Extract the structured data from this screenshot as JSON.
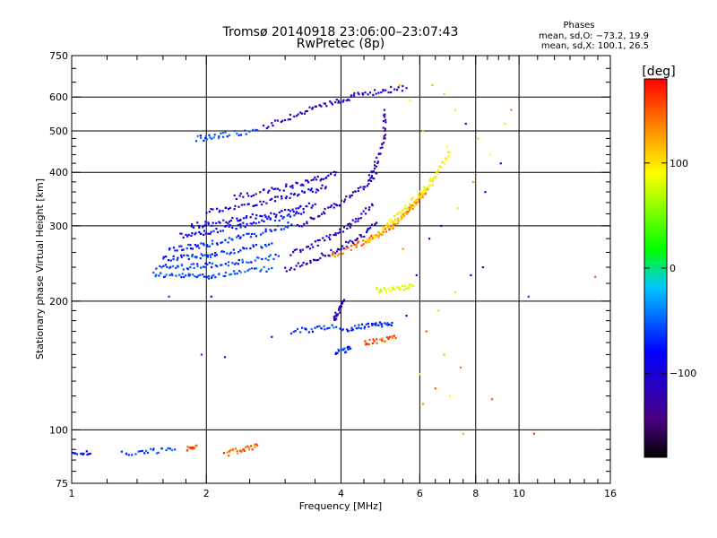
{
  "chart_data": {
    "type": "scatter",
    "title": "Tromsø 20140918 23:06:00–23:07:43",
    "subtitle": "RwPretec (8p)",
    "xlabel": "Frequency [MHz]",
    "ylabel": "Stationary phase Virtual Height [km]",
    "x_scale": "log",
    "y_scale": "log",
    "xlim": [
      1,
      16
    ],
    "ylim": [
      75,
      750
    ],
    "x_ticks": [
      1,
      2,
      4,
      6,
      8,
      10,
      16
    ],
    "x_tick_labels": [
      "1",
      "2",
      "4",
      "6",
      "8",
      "10",
      "16"
    ],
    "y_ticks": [
      75,
      100,
      200,
      300,
      400,
      500,
      600,
      750
    ],
    "y_tick_labels": [
      "75",
      "100",
      "200",
      "300",
      "400",
      "500",
      "600",
      "750"
    ],
    "x_grid": [
      2,
      4,
      6,
      8,
      10
    ],
    "y_grid": [
      100,
      200,
      300,
      400,
      500,
      600
    ],
    "grid": true,
    "phases_title": "Phases",
    "phase_stats": [
      "mean, sd,O: −73.2, 19.9",
      "mean, sd,X: 100.1, 26.5"
    ],
    "colorbar": {
      "label": "[deg]",
      "min": -180,
      "max": 180,
      "ticks": [
        100,
        0,
        -100
      ],
      "tick_labels": [
        "100",
        "0",
        "−100"
      ],
      "placement": "right"
    },
    "traces": [
      {
        "x": [
          1.52,
          1.6,
          1.7,
          1.8,
          1.9,
          2.0,
          2.1,
          2.25,
          2.4,
          2.6,
          2.8
        ],
        "y": [
          232,
          230,
          229,
          229,
          229,
          229,
          230,
          232,
          234,
          236,
          239
        ],
        "phase": -58
      },
      {
        "x": [
          1.55,
          1.65,
          1.75,
          1.85,
          1.95,
          2.05,
          2.2,
          2.35,
          2.5,
          2.7,
          2.9
        ],
        "y": [
          240,
          240,
          240,
          241,
          242,
          243,
          244,
          246,
          248,
          251,
          255
        ],
        "phase": -62
      },
      {
        "x": [
          1.6,
          1.7,
          1.8,
          1.9,
          2.0,
          2.1,
          2.25,
          2.4,
          2.6,
          2.8
        ],
        "y": [
          252,
          252,
          253,
          254,
          256,
          258,
          261,
          264,
          268,
          273
        ],
        "phase": -66
      },
      {
        "x": [
          1.65,
          1.75,
          1.85,
          1.95,
          2.05,
          2.2,
          2.35,
          2.5,
          2.7,
          2.9,
          3.1
        ],
        "y": [
          264,
          266,
          268,
          270,
          273,
          277,
          281,
          285,
          290,
          296,
          302
        ],
        "phase": -72
      },
      {
        "x": [
          1.75,
          1.85,
          1.95,
          2.05,
          2.2,
          2.35,
          2.5,
          2.7,
          2.9,
          3.1,
          3.3
        ],
        "y": [
          284,
          286,
          288,
          291,
          295,
          299,
          303,
          308,
          313,
          318,
          323
        ],
        "phase": -80
      },
      {
        "x": [
          1.85,
          1.95,
          2.05,
          2.2,
          2.35,
          2.5,
          2.7,
          2.9,
          3.1,
          3.3,
          3.5
        ],
        "y": [
          300,
          302,
          304,
          307,
          310,
          314,
          318,
          322,
          327,
          332,
          337
        ],
        "phase": -88
      },
      {
        "x": [
          2.0,
          2.15,
          2.3,
          2.5,
          2.7,
          2.9,
          3.1,
          3.3,
          3.5,
          3.7
        ],
        "y": [
          325,
          328,
          332,
          337,
          342,
          347,
          352,
          358,
          364,
          370
        ],
        "phase": -95
      },
      {
        "x": [
          2.3,
          2.5,
          2.7,
          2.9,
          3.1,
          3.3,
          3.5,
          3.7,
          3.9
        ],
        "y": [
          350,
          355,
          360,
          366,
          372,
          378,
          385,
          392,
          400
        ],
        "phase": -100
      },
      {
        "x": [
          3.0,
          3.2,
          3.4,
          3.6,
          3.8,
          4.0,
          4.2,
          4.4,
          4.6,
          4.8
        ],
        "y": [
          236,
          242,
          248,
          254,
          260,
          266,
          274,
          282,
          292,
          305
        ],
        "phase": -110
      },
      {
        "x": [
          3.1,
          3.3,
          3.5,
          3.7,
          3.9,
          4.1,
          4.3,
          4.5,
          4.7
        ],
        "y": [
          258,
          265,
          272,
          280,
          288,
          298,
          308,
          320,
          335
        ],
        "phase": -104
      },
      {
        "x": [
          3.2,
          3.4,
          3.6,
          3.8,
          4.0,
          4.2,
          4.4,
          4.6,
          4.8
        ],
        "y": [
          300,
          310,
          320,
          330,
          340,
          352,
          365,
          380,
          398
        ],
        "phase": -112
      },
      {
        "x": [
          4.6,
          4.7,
          4.8,
          4.9,
          5.0,
          5.0,
          5.0
        ],
        "y": [
          380,
          400,
          425,
          450,
          480,
          520,
          560
        ],
        "phase": -118
      },
      {
        "x": [
          2.7,
          2.9,
          3.1,
          3.3,
          3.5,
          3.7,
          3.9,
          4.1,
          4.3,
          4.6,
          4.9,
          5.2,
          5.6
        ],
        "y": [
          510,
          525,
          540,
          555,
          565,
          575,
          585,
          595,
          605,
          612,
          620,
          625,
          630
        ],
        "phase": -110
      },
      {
        "x": [
          1.9,
          2.0,
          2.1,
          2.2,
          2.4,
          2.6
        ],
        "y": [
          480,
          482,
          486,
          490,
          496,
          502
        ],
        "phase": -60
      },
      {
        "x": [
          3.8,
          4.0,
          4.2,
          4.4,
          4.6,
          4.8,
          5.0,
          5.2,
          5.4,
          5.6,
          5.8,
          6.0,
          6.2
        ],
        "y": [
          255,
          260,
          266,
          272,
          278,
          285,
          292,
          300,
          310,
          322,
          335,
          350,
          365
        ],
        "phase": 145
      },
      {
        "x": [
          4.5,
          4.7,
          4.9,
          5.1,
          5.3,
          5.5,
          5.7,
          5.9,
          6.1,
          6.3,
          6.5
        ],
        "y": [
          275,
          282,
          290,
          298,
          307,
          318,
          330,
          343,
          357,
          372,
          390
        ],
        "phase": 110
      },
      {
        "x": [
          5.0,
          5.2,
          5.4,
          5.6,
          5.8,
          6.0,
          6.2,
          6.4,
          6.6,
          6.8,
          7.0
        ],
        "y": [
          300,
          310,
          320,
          332,
          344,
          357,
          372,
          388,
          405,
          425,
          445
        ],
        "phase": 90
      },
      {
        "x": [
          3.1,
          3.3,
          3.5,
          3.7,
          3.9
        ],
        "y": [
          170,
          171,
          172,
          173,
          174
        ],
        "phase": -60
      },
      {
        "x": [
          4.0,
          4.2,
          4.4,
          4.6,
          4.8,
          5.0,
          5.2
        ],
        "y": [
          172,
          173,
          174,
          175,
          176,
          177,
          178
        ],
        "phase": -70
      },
      {
        "x": [
          3.85,
          3.9,
          3.95,
          4.0,
          4.05
        ],
        "y": [
          180,
          185,
          190,
          195,
          200
        ],
        "phase": -115
      },
      {
        "x": [
          3.9,
          4.0,
          4.1,
          4.2
        ],
        "y": [
          152,
          153,
          154,
          155
        ],
        "phase": -65
      },
      {
        "x": [
          4.5,
          4.7,
          4.9,
          5.1,
          5.3
        ],
        "y": [
          160,
          161,
          162,
          163,
          164
        ],
        "phase": 150
      },
      {
        "x": [
          4.8,
          5.0,
          5.2,
          5.4,
          5.6,
          5.8
        ],
        "y": [
          212,
          213,
          214,
          215,
          216,
          217
        ],
        "phase": 80
      },
      {
        "x": [
          1.0,
          1.05,
          1.1
        ],
        "y": [
          88,
          88,
          88
        ],
        "phase": -85
      },
      {
        "x": [
          1.3,
          1.4,
          1.5,
          1.6,
          1.7
        ],
        "y": [
          88,
          88.5,
          89,
          89.5,
          90
        ],
        "phase": -60
      },
      {
        "x": [
          1.8,
          1.85,
          1.9
        ],
        "y": [
          90,
          91,
          92
        ],
        "phase": 150
      },
      {
        "x": [
          2.2,
          2.3,
          2.4,
          2.5,
          2.6
        ],
        "y": [
          88,
          89,
          90,
          91,
          92
        ],
        "phase": 150
      }
    ],
    "scattered_points": [
      {
        "x": 6.4,
        "y": 640,
        "phase": 120
      },
      {
        "x": 6.8,
        "y": 610,
        "phase": 60
      },
      {
        "x": 7.2,
        "y": 560,
        "phase": 100
      },
      {
        "x": 7.6,
        "y": 520,
        "phase": -100
      },
      {
        "x": 8.1,
        "y": 480,
        "phase": 110
      },
      {
        "x": 8.6,
        "y": 440,
        "phase": 90
      },
      {
        "x": 9.1,
        "y": 420,
        "phase": -110
      },
      {
        "x": 7.9,
        "y": 380,
        "phase": 130
      },
      {
        "x": 8.4,
        "y": 360,
        "phase": -95
      },
      {
        "x": 9.3,
        "y": 520,
        "phase": 100
      },
      {
        "x": 9.6,
        "y": 560,
        "phase": 140
      },
      {
        "x": 10.5,
        "y": 205,
        "phase": -60
      },
      {
        "x": 14.8,
        "y": 228,
        "phase": 150
      },
      {
        "x": 7.8,
        "y": 230,
        "phase": -100
      },
      {
        "x": 8.3,
        "y": 240,
        "phase": -120
      },
      {
        "x": 7.2,
        "y": 210,
        "phase": 80
      },
      {
        "x": 6.6,
        "y": 190,
        "phase": 100
      },
      {
        "x": 6.2,
        "y": 170,
        "phase": 150
      },
      {
        "x": 6.8,
        "y": 150,
        "phase": 120
      },
      {
        "x": 7.4,
        "y": 140,
        "phase": 140
      },
      {
        "x": 6.0,
        "y": 135,
        "phase": 100
      },
      {
        "x": 6.5,
        "y": 125,
        "phase": 150
      },
      {
        "x": 7.0,
        "y": 120,
        "phase": 90
      },
      {
        "x": 6.1,
        "y": 115,
        "phase": 130
      },
      {
        "x": 7.5,
        "y": 98,
        "phase": 120
      },
      {
        "x": 10.8,
        "y": 98,
        "phase": 160
      },
      {
        "x": 8.7,
        "y": 118,
        "phase": 150
      },
      {
        "x": 5.6,
        "y": 185,
        "phase": -90
      },
      {
        "x": 5.9,
        "y": 230,
        "phase": -100
      },
      {
        "x": 2.8,
        "y": 165,
        "phase": -90
      },
      {
        "x": 2.2,
        "y": 148,
        "phase": -70
      },
      {
        "x": 1.95,
        "y": 150,
        "phase": -60
      },
      {
        "x": 1.65,
        "y": 205,
        "phase": -60
      },
      {
        "x": 2.05,
        "y": 205,
        "phase": -100
      },
      {
        "x": 6.9,
        "y": 460,
        "phase": 90
      },
      {
        "x": 6.1,
        "y": 500,
        "phase": 110
      },
      {
        "x": 5.7,
        "y": 590,
        "phase": 90
      },
      {
        "x": 5.4,
        "y": 640,
        "phase": 120
      },
      {
        "x": 7.3,
        "y": 330,
        "phase": 100
      },
      {
        "x": 6.7,
        "y": 300,
        "phase": -110
      },
      {
        "x": 6.3,
        "y": 280,
        "phase": -90
      },
      {
        "x": 5.5,
        "y": 265,
        "phase": 130
      }
    ]
  }
}
